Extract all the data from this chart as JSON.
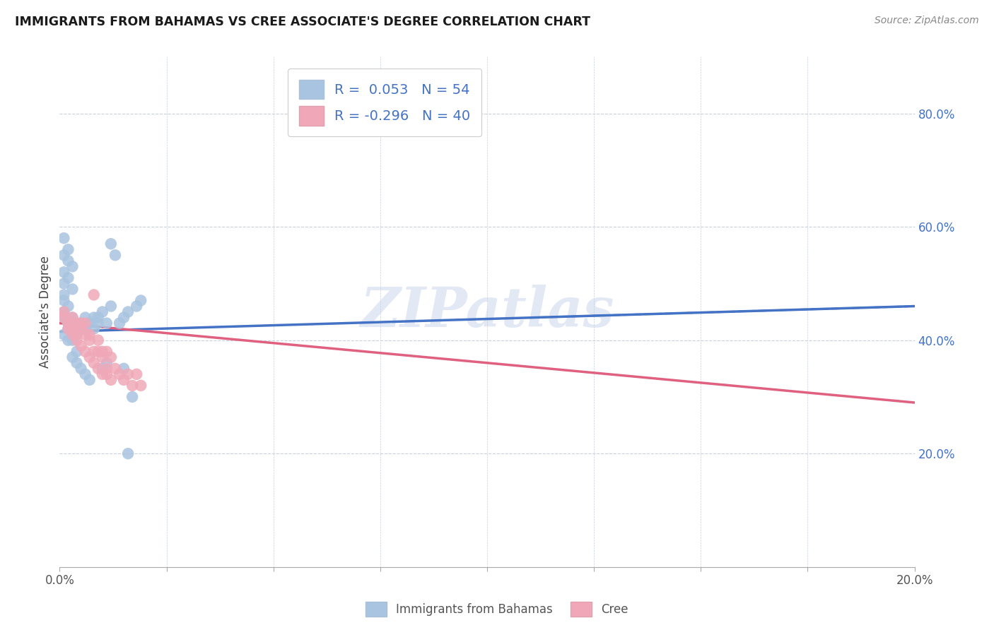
{
  "title": "IMMIGRANTS FROM BAHAMAS VS CREE ASSOCIATE'S DEGREE CORRELATION CHART",
  "source": "Source: ZipAtlas.com",
  "ylabel": "Associate's Degree",
  "right_yticks": [
    "80.0%",
    "60.0%",
    "40.0%",
    "20.0%"
  ],
  "right_ytick_vals": [
    0.8,
    0.6,
    0.4,
    0.2
  ],
  "legend_label1": "Immigrants from Bahamas",
  "legend_label2": "Cree",
  "r1": 0.053,
  "n1": 54,
  "r2": -0.296,
  "n2": 40,
  "color_blue": "#a8c4e0",
  "color_pink": "#f0a8b8",
  "line_blue": "#4472c4",
  "line_pink": "#e06080",
  "watermark": "ZIPatlas",
  "xlim": [
    0.0,
    0.2
  ],
  "ylim": [
    0.0,
    0.9
  ],
  "blue_scatter_x": [
    0.001,
    0.002,
    0.001,
    0.002,
    0.003,
    0.001,
    0.002,
    0.001,
    0.003,
    0.001,
    0.001,
    0.002,
    0.001,
    0.003,
    0.002,
    0.001,
    0.003,
    0.002,
    0.001,
    0.002,
    0.003,
    0.004,
    0.003,
    0.004,
    0.005,
    0.004,
    0.003,
    0.006,
    0.005,
    0.004,
    0.006,
    0.005,
    0.007,
    0.006,
    0.008,
    0.007,
    0.009,
    0.008,
    0.01,
    0.009,
    0.011,
    0.01,
    0.012,
    0.011,
    0.013,
    0.012,
    0.015,
    0.014,
    0.016,
    0.015,
    0.017,
    0.016,
    0.019,
    0.018
  ],
  "blue_scatter_y": [
    0.58,
    0.56,
    0.55,
    0.54,
    0.53,
    0.52,
    0.51,
    0.5,
    0.49,
    0.48,
    0.47,
    0.46,
    0.45,
    0.44,
    0.43,
    0.44,
    0.43,
    0.42,
    0.41,
    0.4,
    0.42,
    0.41,
    0.4,
    0.43,
    0.42,
    0.38,
    0.37,
    0.44,
    0.43,
    0.36,
    0.42,
    0.35,
    0.43,
    0.34,
    0.44,
    0.33,
    0.43,
    0.42,
    0.45,
    0.44,
    0.43,
    0.35,
    0.46,
    0.36,
    0.55,
    0.57,
    0.44,
    0.43,
    0.45,
    0.35,
    0.3,
    0.2,
    0.47,
    0.46
  ],
  "pink_scatter_x": [
    0.001,
    0.001,
    0.002,
    0.002,
    0.003,
    0.003,
    0.004,
    0.004,
    0.005,
    0.005,
    0.006,
    0.006,
    0.007,
    0.007,
    0.008,
    0.008,
    0.009,
    0.009,
    0.01,
    0.01,
    0.011,
    0.011,
    0.012,
    0.013,
    0.014,
    0.015,
    0.016,
    0.017,
    0.018,
    0.019,
    0.003,
    0.004,
    0.005,
    0.006,
    0.007,
    0.008,
    0.009,
    0.01,
    0.011,
    0.012
  ],
  "pink_scatter_y": [
    0.45,
    0.44,
    0.43,
    0.42,
    0.44,
    0.41,
    0.43,
    0.4,
    0.43,
    0.39,
    0.41,
    0.38,
    0.4,
    0.37,
    0.38,
    0.36,
    0.38,
    0.35,
    0.37,
    0.34,
    0.35,
    0.34,
    0.33,
    0.35,
    0.34,
    0.33,
    0.34,
    0.32,
    0.34,
    0.32,
    0.42,
    0.41,
    0.42,
    0.43,
    0.41,
    0.48,
    0.4,
    0.38,
    0.38,
    0.37
  ]
}
